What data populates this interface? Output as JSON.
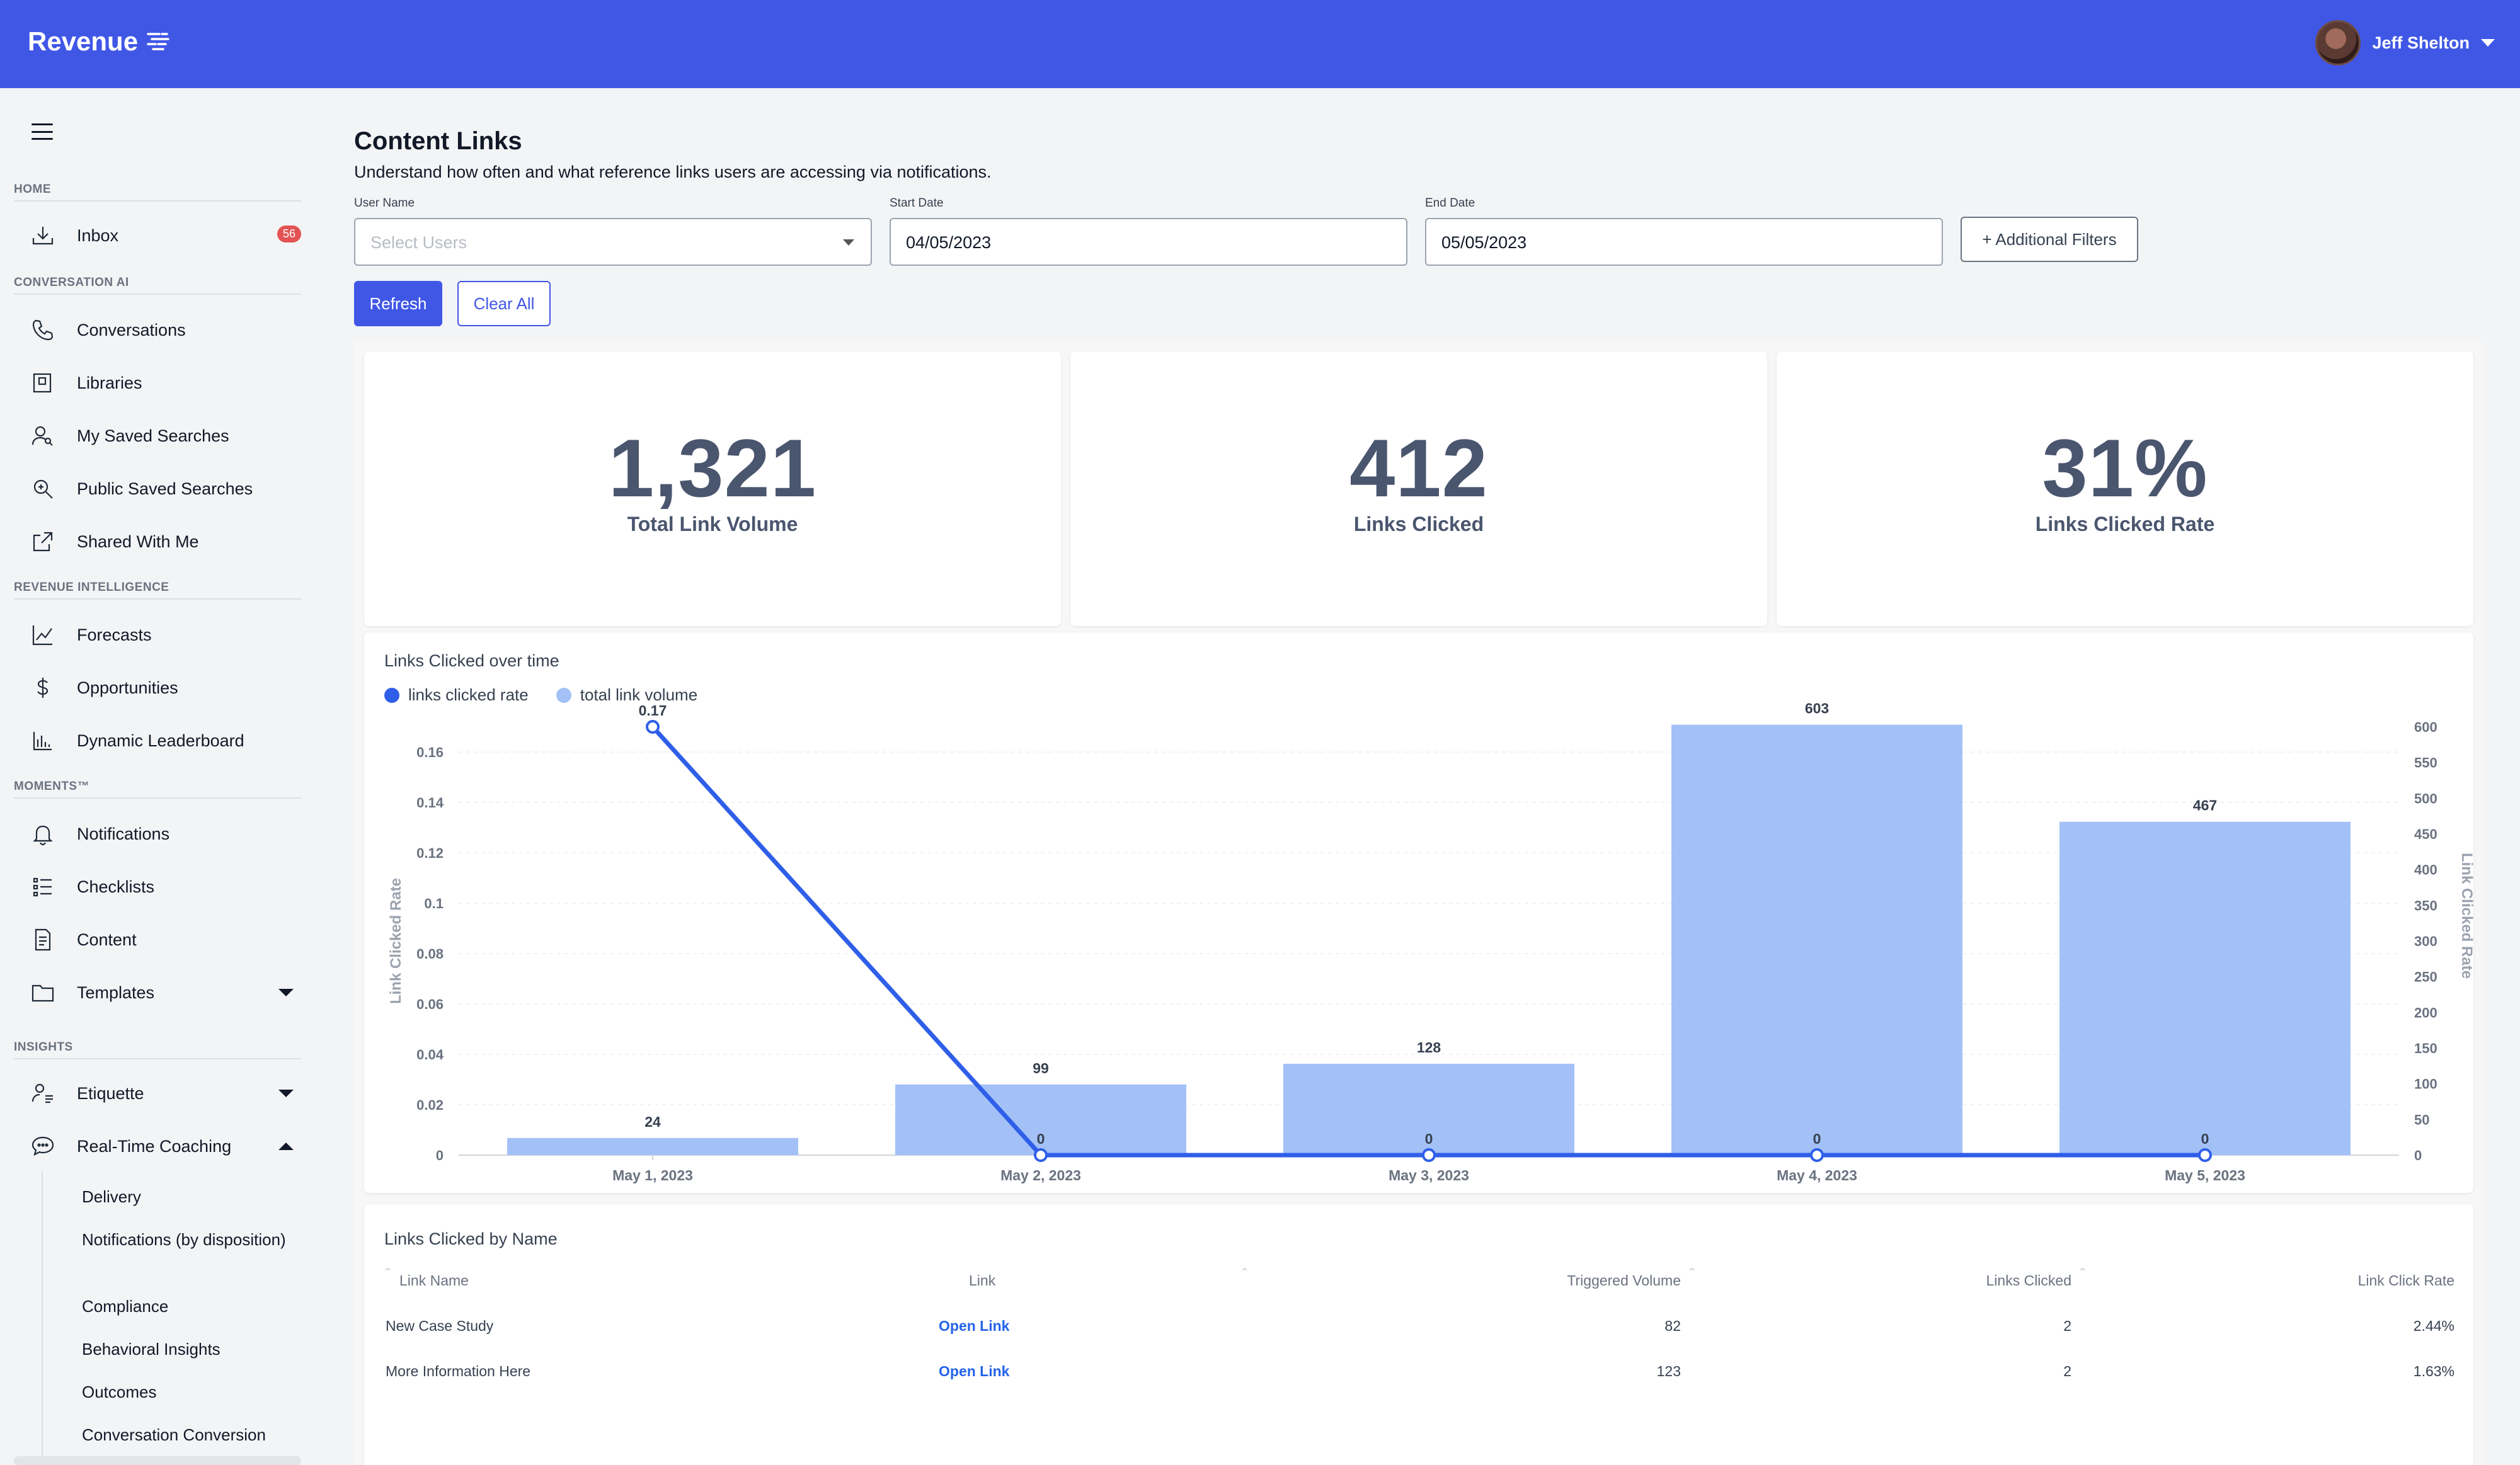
{
  "header": {
    "logo_text": "Revenue",
    "user_name": "Jeff Shelton"
  },
  "sidebar": {
    "sections": {
      "home": "HOME",
      "conversation_ai": "CONVERSATION AI",
      "revenue_intelligence": "REVENUE INTELLIGENCE",
      "moments": "MOMENTS™",
      "insights": "INSIGHTS"
    },
    "items": {
      "inbox": "Inbox",
      "inbox_badge": "56",
      "conversations": "Conversations",
      "libraries": "Libraries",
      "my_saved_searches": "My Saved Searches",
      "public_saved_searches": "Public Saved Searches",
      "shared_with_me": "Shared With Me",
      "forecasts": "Forecasts",
      "opportunities": "Opportunities",
      "dynamic_leaderboard": "Dynamic Leaderboard",
      "notifications": "Notifications",
      "checklists": "Checklists",
      "content": "Content",
      "templates": "Templates",
      "etiquette": "Etiquette",
      "real_time_coaching": "Real-Time Coaching"
    },
    "subitems": [
      "Delivery",
      "Notifications (by disposition)",
      "Compliance",
      "Behavioral Insights",
      "Outcomes",
      "Conversation Conversion"
    ]
  },
  "page": {
    "title": "Content Links",
    "subtitle": "Understand how often and what reference links users are accessing via notifications."
  },
  "filters": {
    "user_name_label": "User Name",
    "user_name_placeholder": "Select Users",
    "start_date_label": "Start Date",
    "start_date_value": "04/05/2023",
    "end_date_label": "End Date",
    "end_date_value": "05/05/2023",
    "additional_filters": "+ Additional Filters",
    "refresh": "Refresh",
    "clear_all": "Clear All"
  },
  "stats": [
    {
      "value": "1,321",
      "label": "Total Link Volume"
    },
    {
      "value": "412",
      "label": "Links Clicked"
    },
    {
      "value": "31%",
      "label": "Links Clicked Rate"
    }
  ],
  "chart": {
    "title": "Links Clicked over time",
    "legend": [
      "links clicked rate",
      "total link volume"
    ],
    "colors": {
      "rate": "#2f5fe8",
      "volume": "#a3c1f7"
    }
  },
  "chart_data": {
    "type": "bar",
    "categories": [
      "May 1, 2023",
      "May 2, 2023",
      "May 3, 2023",
      "May 4, 2023",
      "May 5, 2023"
    ],
    "series": [
      {
        "name": "total link volume",
        "type": "bar",
        "axis": "right",
        "values": [
          24,
          99,
          128,
          603,
          467
        ]
      },
      {
        "name": "links clicked rate",
        "type": "line",
        "axis": "left",
        "values": [
          0.17,
          0,
          0,
          0,
          0
        ]
      }
    ],
    "ylabel": "Link Clicked Rate",
    "y2label": "Link Clicked Rate",
    "ylim": [
      0,
      0.17
    ],
    "y2lim": [
      0,
      600
    ],
    "yticks": [
      "0",
      "0.02",
      "0.04",
      "0.06",
      "0.08",
      "0.1",
      "0.12",
      "0.14",
      "0.16"
    ],
    "y2ticks": [
      "0",
      "50",
      "100",
      "150",
      "200",
      "250",
      "300",
      "350",
      "400",
      "450",
      "500",
      "550",
      "600"
    ],
    "legend_position": "top-left"
  },
  "table": {
    "title": "Links Clicked by Name",
    "columns": [
      "Link Name",
      "Link",
      "Triggered Volume",
      "Links Clicked",
      "Link Click Rate"
    ],
    "rows": [
      {
        "name": "New Case Study",
        "link": "Open Link",
        "triggered": "82",
        "clicked": "2",
        "rate": "2.44%"
      },
      {
        "name": "More Information Here",
        "link": "Open Link",
        "triggered": "123",
        "clicked": "2",
        "rate": "1.63%"
      }
    ]
  }
}
